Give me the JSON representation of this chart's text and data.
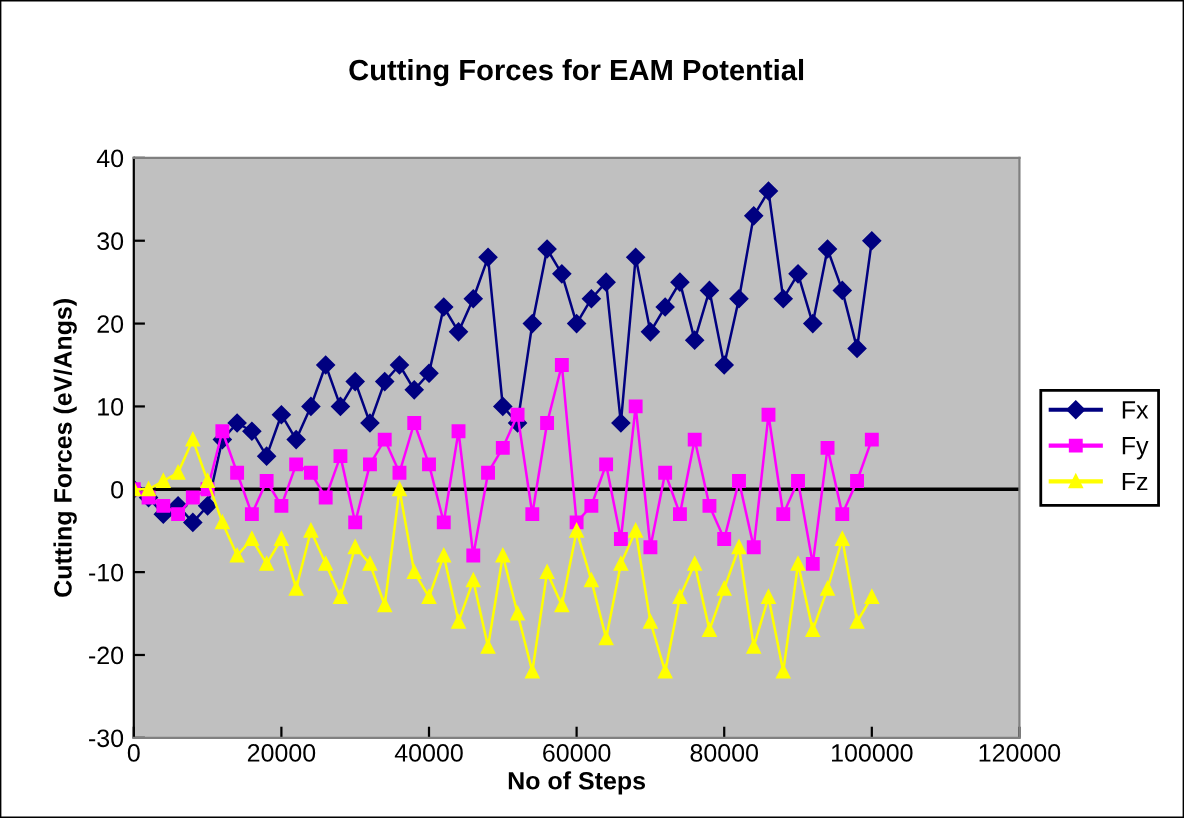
{
  "chart_data": {
    "type": "line",
    "title": "Cutting Forces for EAM Potential",
    "xlabel": "No of Steps",
    "ylabel": "Cutting Forces (eV/Angs)",
    "x": [
      0,
      2000,
      4000,
      6000,
      8000,
      10000,
      12000,
      14000,
      16000,
      18000,
      20000,
      22000,
      24000,
      26000,
      28000,
      30000,
      32000,
      34000,
      36000,
      38000,
      40000,
      42000,
      44000,
      46000,
      48000,
      50000,
      52000,
      54000,
      56000,
      58000,
      60000,
      62000,
      64000,
      66000,
      68000,
      70000,
      72000,
      74000,
      76000,
      78000,
      80000,
      82000,
      84000,
      86000,
      88000,
      90000,
      92000,
      94000,
      96000,
      98000,
      100000
    ],
    "series": [
      {
        "name": "Fx",
        "color": "#000080",
        "marker": "diamond",
        "values": [
          0,
          -1,
          -3,
          -2,
          -4,
          -2,
          6,
          8,
          7,
          4,
          9,
          6,
          10,
          15,
          10,
          13,
          8,
          13,
          15,
          12,
          14,
          22,
          19,
          23,
          28,
          10,
          8,
          20,
          29,
          26,
          20,
          23,
          25,
          8,
          28,
          19,
          22,
          25,
          18,
          24,
          15,
          23,
          33,
          36,
          23,
          26,
          20,
          29,
          24,
          17,
          30
        ]
      },
      {
        "name": "Fy",
        "color": "#ff00ff",
        "marker": "square",
        "values": [
          0,
          -1,
          -2,
          -3,
          -1,
          0,
          7,
          2,
          -3,
          1,
          -2,
          3,
          2,
          -1,
          4,
          -4,
          3,
          6,
          2,
          8,
          3,
          -4,
          7,
          -8,
          2,
          5,
          9,
          -3,
          8,
          15,
          -4,
          -2,
          3,
          -6,
          10,
          -7,
          2,
          -3,
          6,
          -2,
          -6,
          1,
          -7,
          9,
          -3,
          1,
          -9,
          5,
          -3,
          1,
          6
        ]
      },
      {
        "name": "Fz",
        "color": "#ffff00",
        "marker": "triangle",
        "values": [
          0,
          0,
          1,
          2,
          6,
          1,
          -4,
          -8,
          -6,
          -9,
          -6,
          -12,
          -5,
          -9,
          -13,
          -7,
          -9,
          -14,
          0,
          -10,
          -13,
          -8,
          -16,
          -11,
          -19,
          -8,
          -15,
          -22,
          -10,
          -14,
          -5,
          -11,
          -18,
          -9,
          -5,
          -16,
          -22,
          -13,
          -9,
          -17,
          -12,
          -7,
          -19,
          -13,
          -22,
          -9,
          -17,
          -12,
          -6,
          -16,
          -13
        ]
      }
    ],
    "xlim": [
      0,
      120000
    ],
    "xticks": [
      0,
      20000,
      40000,
      60000,
      80000,
      100000,
      120000
    ],
    "ylim": [
      -30,
      40
    ],
    "yticks": [
      -30,
      -20,
      -10,
      0,
      10,
      20,
      30,
      40
    ],
    "ref_lines": [
      {
        "axis": "y",
        "value": 0,
        "color": "#000000"
      }
    ],
    "grid": false,
    "legend": "right",
    "line_style": "solid"
  }
}
